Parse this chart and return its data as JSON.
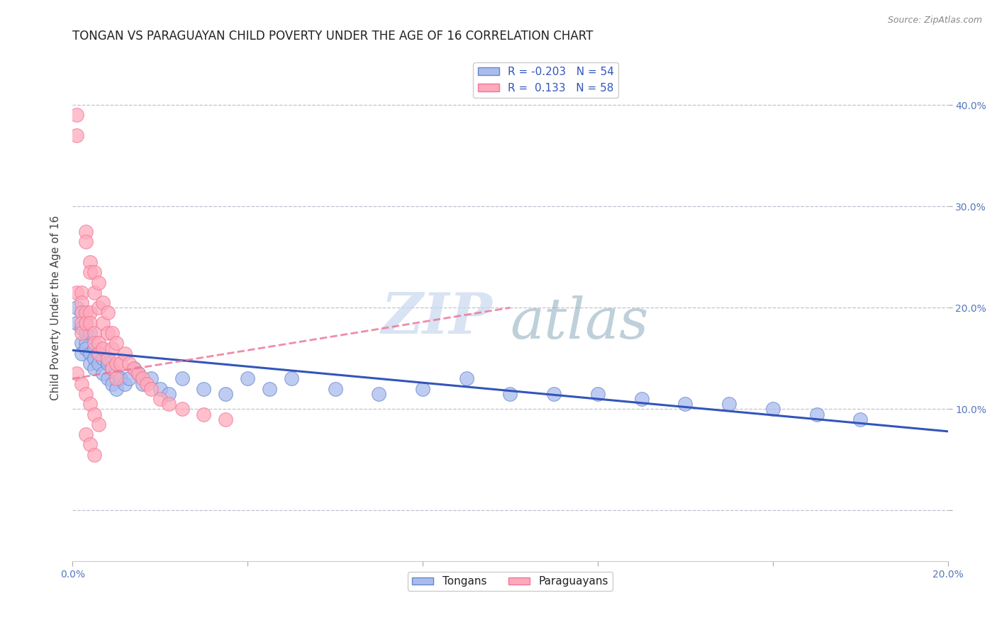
{
  "title": "TONGAN VS PARAGUAYAN CHILD POVERTY UNDER THE AGE OF 16 CORRELATION CHART",
  "source": "Source: ZipAtlas.com",
  "ylabel": "Child Poverty Under the Age of 16",
  "watermark_zip": "ZIP",
  "watermark_atlas": "atlas",
  "xlim": [
    0.0,
    0.2
  ],
  "ylim": [
    -0.05,
    0.45
  ],
  "blue_R": -0.203,
  "blue_N": 54,
  "pink_R": 0.133,
  "pink_N": 58,
  "blue_color": "#AABBEE",
  "pink_color": "#FFAABB",
  "blue_edge_color": "#6688CC",
  "pink_edge_color": "#EE7799",
  "blue_line_color": "#3355BB",
  "pink_line_color": "#EE7799",
  "grid_color": "#BBBBCC",
  "background_color": "#FFFFFF",
  "title_fontsize": 12,
  "axis_fontsize": 11,
  "tick_fontsize": 10,
  "blue_scatter_x": [
    0.001,
    0.001,
    0.002,
    0.002,
    0.002,
    0.002,
    0.003,
    0.003,
    0.003,
    0.003,
    0.004,
    0.004,
    0.004,
    0.005,
    0.005,
    0.005,
    0.006,
    0.006,
    0.007,
    0.007,
    0.008,
    0.008,
    0.009,
    0.009,
    0.01,
    0.01,
    0.011,
    0.012,
    0.013,
    0.014,
    0.015,
    0.016,
    0.018,
    0.02,
    0.022,
    0.025,
    0.03,
    0.035,
    0.04,
    0.045,
    0.05,
    0.06,
    0.07,
    0.08,
    0.09,
    0.1,
    0.11,
    0.12,
    0.13,
    0.14,
    0.15,
    0.16,
    0.17,
    0.18
  ],
  "blue_scatter_y": [
    0.2,
    0.185,
    0.195,
    0.18,
    0.165,
    0.155,
    0.185,
    0.175,
    0.165,
    0.16,
    0.175,
    0.155,
    0.145,
    0.16,
    0.15,
    0.14,
    0.155,
    0.145,
    0.15,
    0.135,
    0.145,
    0.13,
    0.14,
    0.125,
    0.135,
    0.12,
    0.13,
    0.125,
    0.13,
    0.14,
    0.135,
    0.125,
    0.13,
    0.12,
    0.115,
    0.13,
    0.12,
    0.115,
    0.13,
    0.12,
    0.13,
    0.12,
    0.115,
    0.12,
    0.13,
    0.115,
    0.115,
    0.115,
    0.11,
    0.105,
    0.105,
    0.1,
    0.095,
    0.09
  ],
  "pink_scatter_x": [
    0.001,
    0.001,
    0.001,
    0.002,
    0.002,
    0.002,
    0.002,
    0.002,
    0.003,
    0.003,
    0.003,
    0.003,
    0.004,
    0.004,
    0.004,
    0.004,
    0.005,
    0.005,
    0.005,
    0.005,
    0.006,
    0.006,
    0.006,
    0.006,
    0.007,
    0.007,
    0.007,
    0.008,
    0.008,
    0.008,
    0.009,
    0.009,
    0.009,
    0.01,
    0.01,
    0.01,
    0.011,
    0.012,
    0.013,
    0.014,
    0.015,
    0.016,
    0.017,
    0.018,
    0.02,
    0.022,
    0.025,
    0.03,
    0.035,
    0.001,
    0.002,
    0.003,
    0.004,
    0.005,
    0.006,
    0.003,
    0.004,
    0.005
  ],
  "pink_scatter_y": [
    0.39,
    0.37,
    0.215,
    0.215,
    0.205,
    0.195,
    0.185,
    0.175,
    0.275,
    0.265,
    0.195,
    0.185,
    0.245,
    0.235,
    0.195,
    0.185,
    0.235,
    0.215,
    0.175,
    0.165,
    0.225,
    0.2,
    0.165,
    0.155,
    0.205,
    0.185,
    0.16,
    0.195,
    0.175,
    0.15,
    0.175,
    0.16,
    0.14,
    0.165,
    0.145,
    0.13,
    0.145,
    0.155,
    0.145,
    0.14,
    0.135,
    0.13,
    0.125,
    0.12,
    0.11,
    0.105,
    0.1,
    0.095,
    0.09,
    0.135,
    0.125,
    0.115,
    0.105,
    0.095,
    0.085,
    0.075,
    0.065,
    0.055
  ]
}
